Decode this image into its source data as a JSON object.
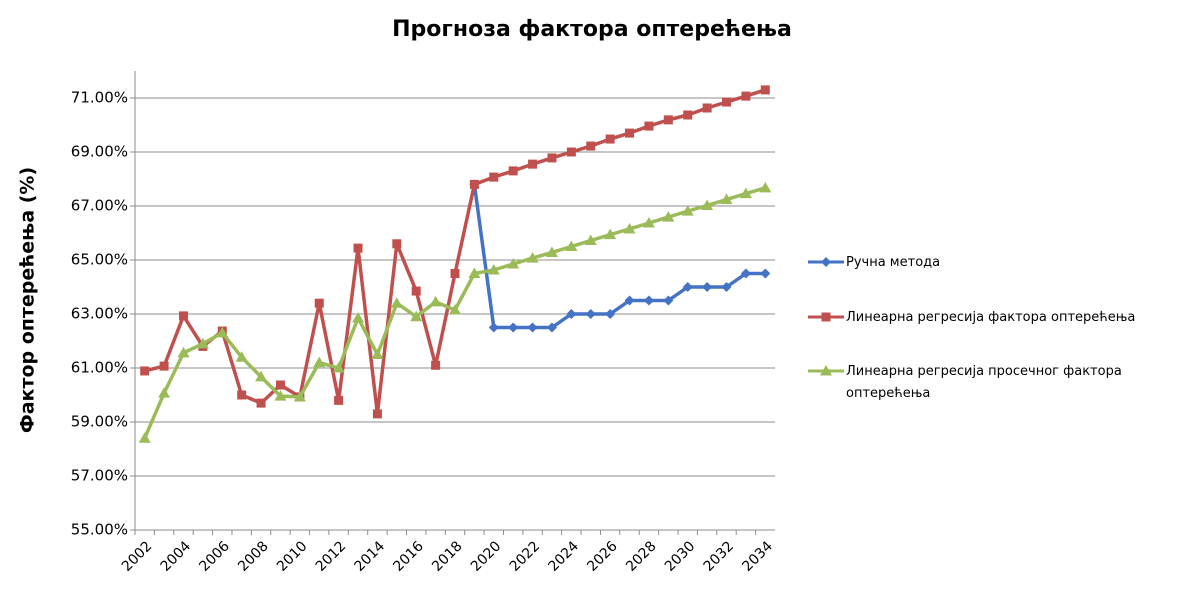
{
  "chart_data": {
    "type": "line",
    "title": "Прогноза фактора оптерећења",
    "y_label": "Фактор оптерећења (%)",
    "categories": [
      "2002",
      null,
      "2004",
      null,
      "2006",
      null,
      "2008",
      null,
      "2010",
      null,
      "2012",
      null,
      "2014",
      null,
      "2016",
      null,
      "2018",
      null,
      "2020",
      null,
      "2022",
      null,
      "2024",
      null,
      "2026",
      null,
      "2028",
      null,
      "2030",
      null,
      "2032",
      null,
      "2034"
    ],
    "series": [
      {
        "name": "Ручна метода",
        "color": "#4472c4",
        "marker": "diamond",
        "values": [
          null,
          null,
          null,
          null,
          null,
          null,
          null,
          null,
          null,
          null,
          null,
          null,
          null,
          null,
          null,
          null,
          null,
          67.8,
          62.5,
          62.5,
          62.5,
          62.5,
          63.0,
          63.0,
          63.0,
          63.5,
          63.5,
          63.5,
          64.0,
          64.0,
          64.0,
          64.5,
          64.5
        ]
      },
      {
        "name": "Линеарна регресија фактора оптерећења",
        "color": "#c0504d",
        "marker": "square",
        "values": [
          60.89,
          61.07,
          62.93,
          61.8,
          62.37,
          60.0,
          59.7,
          60.37,
          59.93,
          63.4,
          59.8,
          65.44,
          59.3,
          65.6,
          63.85,
          61.1,
          64.5,
          67.8,
          68.07,
          68.3,
          68.55,
          68.78,
          69.0,
          69.22,
          69.48,
          69.7,
          69.96,
          70.19,
          70.37,
          70.63,
          70.85,
          71.07,
          71.3
        ]
      },
      {
        "name": "Линеарна регресија просечног фактора оптерећења",
        "color": "#9bbb59",
        "marker": "triangle",
        "values": [
          58.4,
          60.07,
          61.56,
          61.9,
          62.3,
          61.4,
          60.67,
          59.96,
          59.93,
          61.2,
          61.0,
          62.85,
          61.5,
          63.4,
          62.9,
          63.45,
          63.15,
          64.5,
          64.63,
          64.85,
          65.07,
          65.28,
          65.5,
          65.72,
          65.94,
          66.15,
          66.37,
          66.59,
          66.81,
          67.02,
          67.24,
          67.46,
          67.67
        ]
      }
    ],
    "ylim": [
      55,
      72
    ],
    "yticks": [
      {
        "value": 55,
        "label": "55.00%"
      },
      {
        "value": 57,
        "label": "57.00%"
      },
      {
        "value": 59,
        "label": "59.00%"
      },
      {
        "value": 61,
        "label": "61.00%"
      },
      {
        "value": 63,
        "label": "63.00%"
      },
      {
        "value": 65,
        "label": "65.00%"
      },
      {
        "value": 67,
        "label": "67.00%"
      },
      {
        "value": 69,
        "label": "69.00%"
      },
      {
        "value": 71,
        "label": "71.00%"
      }
    ],
    "grid": true,
    "legend": "right"
  }
}
